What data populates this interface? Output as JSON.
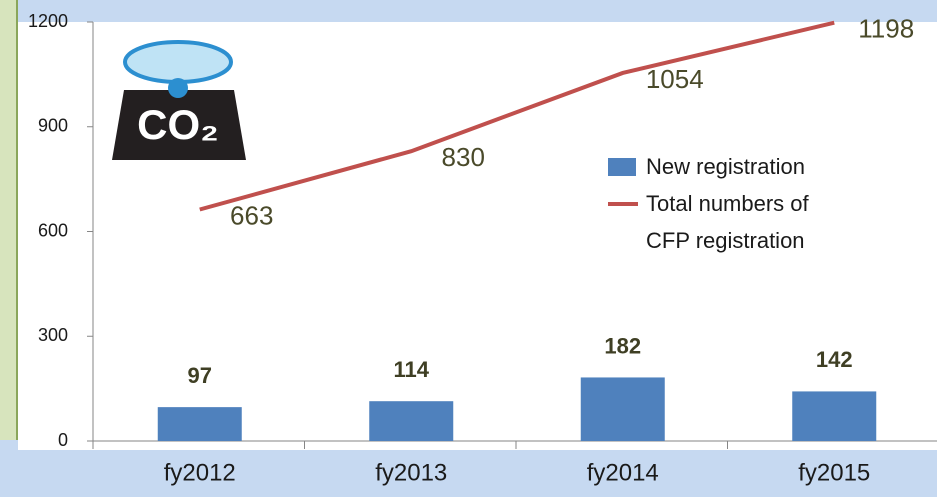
{
  "chart_data": {
    "type": "bar_line",
    "categories": [
      "fy2012",
      "fy2013",
      "fy2014",
      "fy2015"
    ],
    "series": [
      {
        "name": "New registration",
        "type": "bar",
        "color": "#4f81bd",
        "values": [
          97,
          114,
          182,
          142
        ]
      },
      {
        "name": "Total numbers of CFP registration",
        "type": "line",
        "color": "#c0504d",
        "values": [
          663,
          830,
          1054,
          1198
        ]
      }
    ],
    "ylim": [
      0,
      1200
    ],
    "yticks": [
      0,
      300,
      600,
      900,
      1200
    ],
    "icon_label": "CO₂"
  }
}
